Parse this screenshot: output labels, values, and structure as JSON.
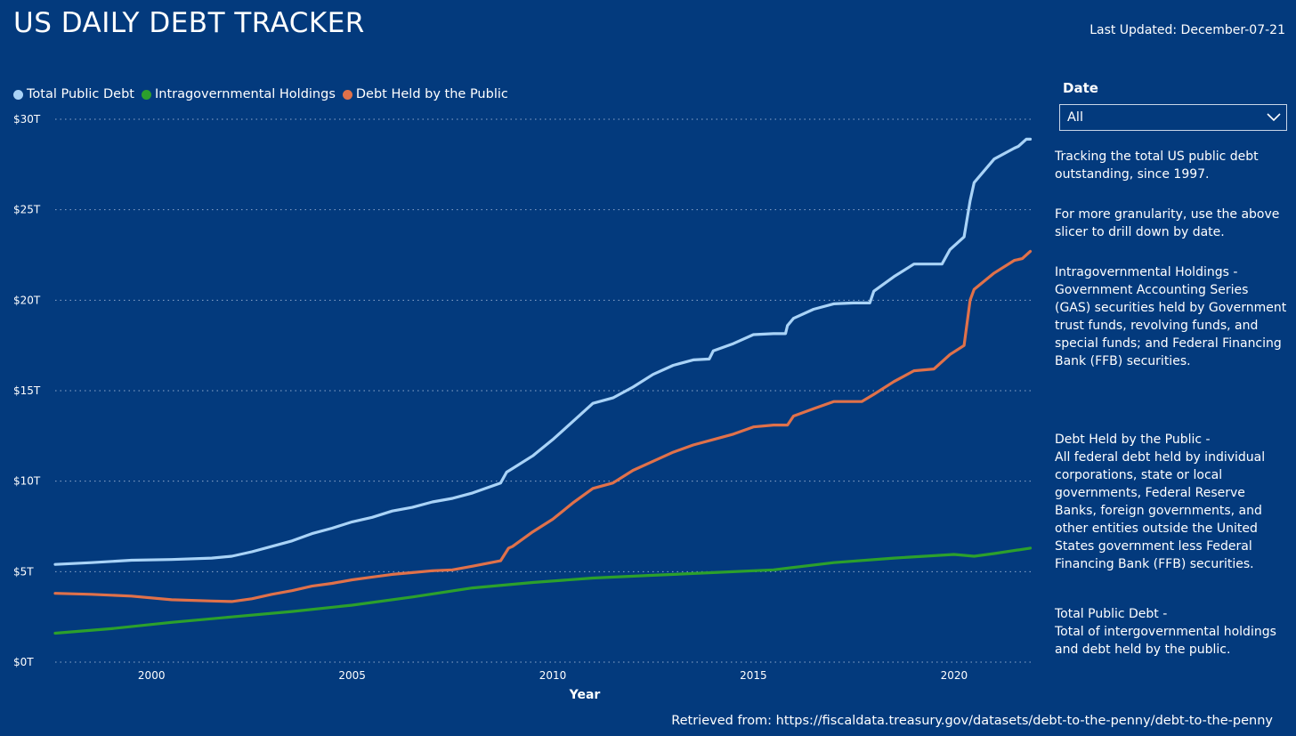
{
  "header": {
    "title": "US DAILY DEBT TRACKER",
    "last_updated": "Last Updated: December-07-21"
  },
  "slicer": {
    "label": "Date",
    "value": "All"
  },
  "descriptions": [
    "Tracking the total US public debt outstanding, since 1997.",
    "For more granularity, use the above slicer to drill down by date.",
    "Intragovernmental Holdings - Government Accounting Series (GAS) securities held by Government trust funds, revolving funds, and special funds; and Federal Financing Bank (FFB) securities.",
    "Debt Held by the Public -",
    "All federal debt held by individual corporations, state or local governments, Federal Reserve Banks, foreign governments, and other entities outside the United States government less Federal Financing Bank (FFB) securities.",
    "Total Public Debt -",
    "Total of intergovernmental holdings and debt held by the public."
  ],
  "footer": {
    "retrieved": "Retrieved from: https://fiscaldata.treasury.gov/datasets/debt-to-the-penny/debt-to-the-penny"
  },
  "colors": {
    "background": "#033a7d",
    "total": "#a9d3f7",
    "intragov": "#2ca02c",
    "public": "#e0714a"
  },
  "chart_data": {
    "type": "line",
    "title": "",
    "xlabel": "Year",
    "ylabel": "",
    "xlim": [
      1997.6,
      2022.0
    ],
    "ylim": [
      0,
      30
    ],
    "x_ticks": [
      2000,
      2005,
      2010,
      2015,
      2020
    ],
    "y_ticks": [
      0,
      5,
      10,
      15,
      20,
      25,
      30
    ],
    "y_tick_labels": [
      "$0T",
      "$5T",
      "$10T",
      "$15T",
      "$20T",
      "$25T",
      "$30T"
    ],
    "grid": "horizontal dotted",
    "legend": "top-left",
    "series": [
      {
        "name": "Total Public Debt",
        "color_key": "total",
        "x": [
          1997.6,
          1998.5,
          1999.5,
          2000.5,
          2001.5,
          2002.0,
          2002.5,
          2003.0,
          2003.5,
          2004.0,
          2004.5,
          2005.0,
          2005.5,
          2006.0,
          2006.5,
          2007.0,
          2007.5,
          2008.0,
          2008.7,
          2008.85,
          2009.0,
          2009.5,
          2010.0,
          2010.5,
          2011.0,
          2011.5,
          2012.0,
          2012.5,
          2013.0,
          2013.5,
          2013.9,
          2014.0,
          2014.5,
          2015.0,
          2015.5,
          2015.8,
          2015.85,
          2016.0,
          2016.5,
          2017.0,
          2017.5,
          2017.7,
          2017.9,
          2018.0,
          2018.5,
          2019.0,
          2019.5,
          2019.7,
          2019.9,
          2020.25,
          2020.4,
          2020.5,
          2021.0,
          2021.5,
          2021.6,
          2021.8,
          2021.9
        ],
        "values": [
          5.4,
          5.5,
          5.63,
          5.67,
          5.75,
          5.85,
          6.1,
          6.4,
          6.7,
          7.1,
          7.4,
          7.75,
          8.0,
          8.35,
          8.55,
          8.85,
          9.05,
          9.35,
          9.9,
          10.5,
          10.7,
          11.4,
          12.3,
          13.3,
          14.3,
          14.6,
          15.2,
          15.9,
          16.4,
          16.7,
          16.75,
          17.2,
          17.6,
          18.1,
          18.15,
          18.15,
          18.6,
          19.0,
          19.5,
          19.8,
          19.85,
          19.85,
          19.85,
          20.5,
          21.3,
          22.0,
          22.0,
          22.0,
          22.8,
          23.5,
          25.5,
          26.5,
          27.8,
          28.4,
          28.5,
          28.9,
          28.9
        ]
      },
      {
        "name": "Intragovernmental Holdings",
        "color_key": "intragov",
        "x": [
          1997.6,
          1999.0,
          2000.5,
          2002.0,
          2003.5,
          2005.0,
          2006.5,
          2008.0,
          2009.5,
          2011.0,
          2012.5,
          2014.0,
          2015.5,
          2017.0,
          2018.5,
          2020.0,
          2020.5,
          2021.0,
          2021.9
        ],
        "values": [
          1.6,
          1.85,
          2.2,
          2.5,
          2.8,
          3.15,
          3.6,
          4.1,
          4.4,
          4.65,
          4.8,
          4.95,
          5.1,
          5.5,
          5.75,
          5.95,
          5.85,
          6.0,
          6.3
        ]
      },
      {
        "name": "Debt Held by the Public",
        "color_key": "public",
        "x": [
          1997.6,
          1998.5,
          1999.5,
          2000.5,
          2001.5,
          2002.0,
          2002.5,
          2003.0,
          2003.5,
          2004.0,
          2004.5,
          2005.0,
          2005.5,
          2006.0,
          2006.5,
          2007.0,
          2007.5,
          2008.0,
          2008.7,
          2008.9,
          2009.0,
          2009.5,
          2010.0,
          2010.5,
          2011.0,
          2011.5,
          2012.0,
          2012.5,
          2013.0,
          2013.5,
          2014.0,
          2014.5,
          2015.0,
          2015.5,
          2015.85,
          2016.0,
          2016.5,
          2017.0,
          2017.5,
          2017.7,
          2018.0,
          2018.5,
          2019.0,
          2019.5,
          2019.9,
          2020.25,
          2020.4,
          2020.5,
          2021.0,
          2021.5,
          2021.7,
          2021.9
        ],
        "values": [
          3.8,
          3.75,
          3.65,
          3.45,
          3.38,
          3.35,
          3.5,
          3.75,
          3.95,
          4.2,
          4.35,
          4.55,
          4.7,
          4.85,
          4.95,
          5.05,
          5.1,
          5.3,
          5.6,
          6.3,
          6.4,
          7.2,
          7.9,
          8.8,
          9.6,
          9.9,
          10.6,
          11.1,
          11.6,
          12.0,
          12.3,
          12.6,
          13.0,
          13.1,
          13.1,
          13.6,
          14.0,
          14.4,
          14.4,
          14.4,
          14.8,
          15.5,
          16.1,
          16.2,
          17.0,
          17.5,
          20.0,
          20.6,
          21.5,
          22.2,
          22.3,
          22.7
        ]
      }
    ]
  }
}
